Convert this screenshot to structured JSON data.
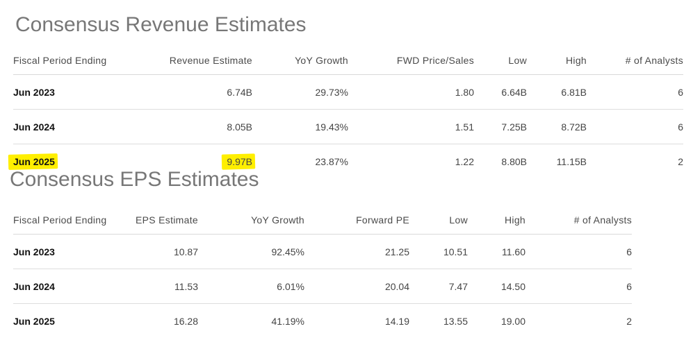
{
  "colors": {
    "title": "#777777",
    "highlight": "#ffef00",
    "divider": "#dddddd"
  },
  "revenue": {
    "title": "Consensus Revenue Estimates",
    "headers": [
      "Fiscal Period Ending",
      "Revenue Estimate",
      "YoY Growth",
      "FWD Price/Sales",
      "Low",
      "High",
      "# of Analysts"
    ],
    "rows": [
      [
        "Jun 2023",
        "6.74B",
        "29.73%",
        "1.80",
        "6.64B",
        "6.81B",
        "6"
      ],
      [
        "Jun 2024",
        "8.05B",
        "19.43%",
        "1.51",
        "7.25B",
        "8.72B",
        "6"
      ],
      [
        "Jun 2025",
        "9.97B",
        "23.87%",
        "1.22",
        "8.80B",
        "11.15B",
        "2"
      ]
    ],
    "highlighted_cells": [
      "Jun 2025 / Revenue Estimate"
    ]
  },
  "eps": {
    "title": "Consensus EPS Estimates",
    "headers": [
      "Fiscal Period Ending",
      "EPS Estimate",
      "YoY Growth",
      "Forward PE",
      "Low",
      "High",
      "# of Analysts"
    ],
    "rows": [
      [
        "Jun 2023",
        "10.87",
        "92.45%",
        "21.25",
        "10.51",
        "11.60",
        "6"
      ],
      [
        "Jun 2024",
        "11.53",
        "6.01%",
        "20.04",
        "7.47",
        "14.50",
        "6"
      ],
      [
        "Jun 2025",
        "16.28",
        "41.19%",
        "14.19",
        "13.55",
        "19.00",
        "2"
      ]
    ]
  }
}
